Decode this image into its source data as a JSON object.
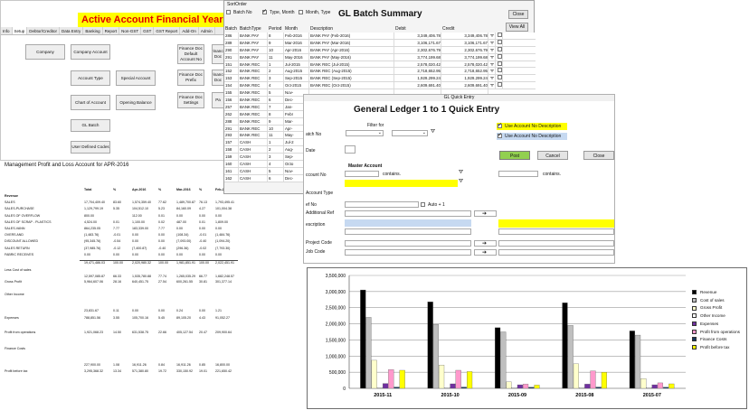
{
  "main_window": {
    "title": "Active Account Financial Year : Jul-20",
    "tabs": [
      "Info",
      "Setup",
      "Debtor/Creditor",
      "Data Entry",
      "Banking",
      "Report",
      "Non-GST",
      "GST",
      "GST Report",
      "Add-On",
      "Admin"
    ],
    "active_tab": "Setup",
    "buttons": {
      "company": "Company",
      "company_account": "Company Account",
      "account_type": "Account Type",
      "special_account": "Special Account",
      "chart_of_account": "Chart of Account",
      "opening_balance": "Opening Balance",
      "gl_batch": "GL Batch",
      "user_defined_codes": "User Defined Codes",
      "finance_doc_default": "Finance Doc Default Account No",
      "finance_doc_prefix": "Finance Doc Prefix",
      "finance_doc_settings": "Finance Doc Settings",
      "finance_doc_a": "Finance Doc",
      "finance_doc_b": "Finance Doc",
      "partial_pa": "Pa"
    }
  },
  "report": {
    "title": "Management Profit and Loss Account for APR-2016",
    "columns": [
      "Total",
      "%",
      "Apr-2016",
      "%",
      "Mar-2016",
      "%",
      "Feb-2016"
    ],
    "rows": [
      {
        "label": "Revenue",
        "vals": [
          "",
          "",
          "",
          "",
          "",
          "",
          ""
        ]
      },
      {
        "label": "SALES",
        "vals": [
          "17,704,409.40",
          "83.60",
          "1,574,359.40",
          "77.62",
          "1,489,700.87",
          "76.13",
          "1,793,495.41"
        ]
      },
      {
        "label": "SALES-PURCHASE",
        "vals": [
          "1,129,799.19",
          "5.35",
          "104,512.10",
          "5.23",
          "84,160.09",
          "4.27",
          "101,004.38"
        ]
      },
      {
        "label": "SALES OF OVERFLOW",
        "vals": [
          "800.00",
          "",
          "112.00",
          "0.01",
          "0.00",
          "0.00",
          "0.00"
        ]
      },
      {
        "label": "SALES OF SCRAP - PLASTICS",
        "vals": [
          "4,524.00",
          "0.01",
          "1,100.00",
          "0.02",
          "487.00",
          "0.01",
          "1,809.00"
        ]
      },
      {
        "label": "SALES-VANN",
        "vals": [
          "864,235.05",
          "7.77",
          "183,339.00",
          "7.77",
          "0.00",
          "0.00",
          "0.00"
        ]
      },
      {
        "label": "OVERS AND",
        "vals": [
          "(1,483.76)",
          "-0.01",
          "0.00",
          "0.00",
          "(108.34)",
          "-0.01",
          "(1,484.76)"
        ]
      },
      {
        "label": "DISCOUNT ALLOWED",
        "vals": [
          "(95,345.76)",
          "-0.54",
          "0.00",
          "0.00",
          "(7,093.00)",
          "-0.40",
          "(1,094.20)"
        ]
      },
      {
        "label": "SALES RETURN",
        "vals": [
          "(37,985.76)",
          "-0.12",
          "(7,400.87)",
          "-0.40",
          "(296.36)",
          "-0.02",
          "(7,793.30)"
        ]
      },
      {
        "label": "FABRIC RECEIVES",
        "vals": [
          "0.00",
          "0.00",
          "0.00",
          "0.00",
          "0.00",
          "0.00",
          "0.00"
        ]
      }
    ],
    "subtotal_revenue": [
      "19,471,486.03",
      "100.00",
      "2,020,980.32",
      "100.00",
      "1,981,851.91",
      "100.00",
      "2,022,451.91"
    ],
    "rows2": [
      {
        "label": "Less Cost of sales",
        "vals": [
          "",
          "",
          "",
          "",
          "",
          "",
          ""
        ]
      },
      {
        "label": "",
        "vals": [
          "12,597,085.87",
          "66.33",
          "1,535,780.88",
          "77.74",
          "1,265,035.29",
          "66.77",
          "1,682,248.57"
        ]
      },
      {
        "label": "Gross Profit",
        "vals": [
          "5,964,607.06",
          "28.16",
          "640,451.75",
          "27.54",
          "600,261.55",
          "30.81",
          "301,377.14"
        ]
      },
      {
        "label": "Other Income",
        "vals": [
          "",
          "",
          "",
          "",
          "",
          "",
          ""
        ]
      },
      {
        "label": "",
        "vals": [
          "23,831.67",
          "0.11",
          "0.00",
          "0.00",
          "0.24",
          "0.00",
          "1.21"
        ]
      },
      {
        "label": "Expenses",
        "vals": [
          "788,851.56",
          "3.55",
          "105,700.16",
          "5.45",
          "89,105.20",
          "4.43",
          "91,052.27"
        ]
      },
      {
        "label": "Profit from operations",
        "vals": [
          "1,921,068.23",
          "14.50",
          "631,538.75",
          "22.66",
          "405,127.54",
          "20.47",
          "209,900.64"
        ]
      },
      {
        "label": "Finance Costs",
        "vals": [
          "",
          "",
          "",
          "",
          "",
          "",
          ""
        ]
      },
      {
        "label": "",
        "vals": [
          "227,900.00",
          "1.08",
          "16,911.26",
          "0.84",
          "16,911.26",
          "0.85",
          "16,800.00"
        ]
      },
      {
        "label": "Profit before tax",
        "vals": [
          "3,295,368.32",
          "13.34",
          "571,380.80",
          "19.72",
          "330,150.92",
          "19.01",
          "221,650.42"
        ]
      }
    ]
  },
  "gl_batch": {
    "title": "GL Batch Summary",
    "sort_order_label": "SortOrder",
    "sort_options": [
      {
        "label": "Batch No",
        "checked": false
      },
      {
        "label": "Type, Month",
        "checked": true
      },
      {
        "label": "Month, Type",
        "checked": false
      }
    ],
    "close_label": "Close",
    "view_all_label": "View All",
    "headers": [
      "Batch",
      "BatchType",
      "Period",
      "Month",
      "Description",
      "Debit",
      "Credit"
    ],
    "rows": [
      [
        "286",
        "BANK PAY",
        "8",
        "Feb-2016",
        "BANK PAY (Feb-2016)",
        "3,349,406.78",
        "3,349,406.78"
      ],
      [
        "289",
        "BANK PAY",
        "9",
        "Mar-2016",
        "BANK PAY (Mar-2016)",
        "3,106,171.67",
        "3,106,171.67"
      ],
      [
        "290",
        "BANK PAY",
        "10",
        "Apr-2016",
        "BANK PAY (Apr-2016)",
        "2,302,676.79",
        "2,302,676.79"
      ],
      [
        "291",
        "BANK PAY",
        "11",
        "May-2016",
        "BANK PAY (May-2016)",
        "3,774,199.68",
        "3,774,199.68"
      ],
      [
        "151",
        "BANK REC",
        "1",
        "Jul-2015",
        "BANK REC (Jul-2015)",
        "2,578,020.42",
        "2,578,020.42"
      ],
      [
        "152",
        "BANK REC",
        "2",
        "Aug-2015",
        "BANK REC (Aug-2015)",
        "2,718,652.95",
        "2,718,652.95"
      ],
      [
        "153",
        "BANK REC",
        "3",
        "Sep-2015",
        "BANK REC (Sep-2015)",
        "1,929,299.24",
        "1,929,299.24"
      ],
      [
        "154",
        "BANK REC",
        "4",
        "Oct-2015",
        "BANK REC (Oct-2015)",
        "2,609,691.40",
        "2,609,691.40"
      ],
      [
        "155",
        "BANK REC",
        "5",
        "Nov-",
        "",
        "",
        ""
      ],
      [
        "156",
        "BANK REC",
        "6",
        "Dec-",
        "",
        "",
        ""
      ],
      [
        "257",
        "BANK REC",
        "7",
        "Jan-",
        "",
        "",
        ""
      ],
      [
        "262",
        "BANK REC",
        "8",
        "Febr",
        "",
        "",
        ""
      ],
      [
        "288",
        "BANK REC",
        "9",
        "Mar-",
        "",
        "",
        ""
      ],
      [
        "291",
        "BANK REC",
        "10",
        "Apr-",
        "",
        "",
        ""
      ],
      [
        "293",
        "BANK REC",
        "11",
        "May-",
        "",
        "",
        ""
      ],
      [
        "157",
        "CASH",
        "1",
        "Jul-2",
        "",
        "",
        ""
      ],
      [
        "158",
        "CASH",
        "2",
        "Aug-",
        "",
        "",
        ""
      ],
      [
        "159",
        "CASH",
        "3",
        "Sep-",
        "",
        "",
        ""
      ],
      [
        "160",
        "CASH",
        "4",
        "Octo",
        "",
        "",
        ""
      ],
      [
        "161",
        "CASH",
        "5",
        "Nov-",
        "",
        "",
        ""
      ],
      [
        "162",
        "CASH",
        "6",
        "Dec-",
        "",
        "",
        ""
      ]
    ]
  },
  "quick_entry": {
    "caption": "GL Quick Entry",
    "title": "General Ledger 1 to 1 Quick Entry",
    "filter_label": "Filter for",
    "use_account_no_desc_1": "Use Account No Description",
    "use_account_no_desc_2": "Use Account No Description",
    "batch_no_label": "atch No",
    "date_label": "Date",
    "post_label": "Post",
    "cancel_label": "Cancel",
    "close_label": "Close",
    "master_account_label": "Master Account",
    "account_no_label": "ccount No",
    "contains_label_1": "contains.",
    "contains_label_2": "contains.",
    "account_type_label": "Account Type",
    "ref_no_label": "ef No",
    "auto_plus_label": "Auto + 1",
    "additional_ref_label": "Additional Ref",
    "description_label": "escription",
    "project_code_label": "Project Code",
    "job_code_label": "Job Code"
  },
  "chart_data": {
    "type": "bar",
    "categories": [
      "2015-11",
      "2015-10",
      "2015-09",
      "2015-08",
      "2015-07"
    ],
    "ylim": [
      0,
      3500000
    ],
    "yticks": [
      "0",
      "500,000",
      "1,000,000",
      "1,500,000",
      "2,000,000",
      "2,500,000",
      "3,000,000",
      "3,500,000"
    ],
    "series": [
      {
        "name": "Revenue",
        "color": "#000000",
        "values": [
          3050000,
          2680000,
          1880000,
          2650000,
          1780000
        ]
      },
      {
        "name": "Cost of sales",
        "color": "#bfbfbf",
        "values": [
          2200000,
          1980000,
          1750000,
          1950000,
          1650000
        ]
      },
      {
        "name": "Gross Profit",
        "color": "#ffffcc",
        "values": [
          870000,
          720000,
          200000,
          760000,
          300000
        ]
      },
      {
        "name": "Other Income",
        "color": "#ffffff",
        "values": [
          20000,
          20000,
          20000,
          20000,
          20000
        ]
      },
      {
        "name": "Expenses",
        "color": "#7030a0",
        "values": [
          150000,
          140000,
          110000,
          130000,
          110000
        ]
      },
      {
        "name": "Profit from operations",
        "color": "#ff99cc",
        "values": [
          580000,
          560000,
          130000,
          540000,
          170000
        ]
      },
      {
        "name": "Finance Costs",
        "color": "#17375e",
        "values": [
          40000,
          40000,
          35000,
          40000,
          35000
        ]
      },
      {
        "name": "Profit before tax",
        "color": "#ffff00",
        "values": [
          560000,
          520000,
          100000,
          500000,
          140000
        ]
      }
    ]
  }
}
